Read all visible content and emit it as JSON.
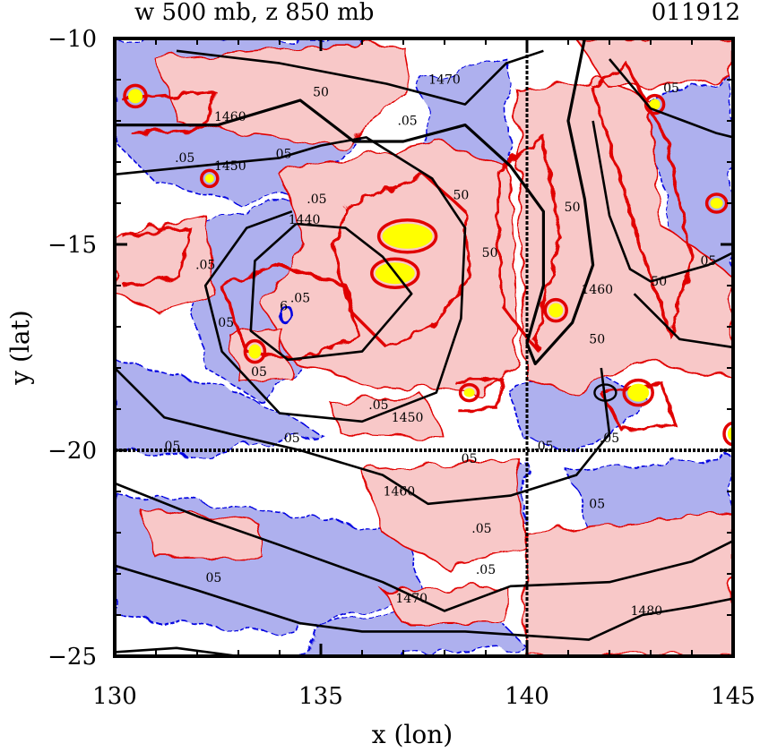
{
  "title_left": "w 500 mb, z 850 mb",
  "title_right": "011912",
  "colors": {
    "positive_fill": "#f8c8c8",
    "negative_fill": "#aeb0ee",
    "strong_updraft": "#ffff00",
    "positive_contour": "#e00000",
    "negative_contour": "#0000e0",
    "height_contour": "#000000"
  },
  "chart_data": {
    "type": "contour-map",
    "xlabel": "x (lon)",
    "ylabel": "y (lat)",
    "xlim": [
      130,
      145
    ],
    "ylim": [
      -25,
      -10
    ],
    "x_ticks": [
      130,
      135,
      140,
      145
    ],
    "x_tick_labels": [
      "130",
      "135",
      "140",
      "145"
    ],
    "y_ticks": [
      -25,
      -20,
      -15,
      -10
    ],
    "y_tick_labels": [
      "−25",
      "−20",
      "−15",
      "−10"
    ],
    "reference_lines": {
      "vertical_lon": 140,
      "horizontal_lat": -20
    },
    "height_contours": [
      {
        "level": "1440",
        "label_at": [
          134.6,
          -14.5
        ]
      },
      {
        "level": "1450",
        "label_at": [
          132.8,
          -13.2
        ]
      },
      {
        "level": "1450",
        "label_at": [
          137.1,
          -19.3
        ]
      },
      {
        "level": "1460",
        "label_at": [
          132.8,
          -12.0
        ]
      },
      {
        "level": "1460",
        "label_at": [
          136.9,
          -21.1
        ]
      },
      {
        "level": "1460",
        "label_at": [
          141.7,
          -16.2
        ]
      },
      {
        "level": "1470",
        "label_at": [
          138.0,
          -11.1
        ]
      },
      {
        "level": "1470",
        "label_at": [
          137.2,
          -23.7
        ]
      },
      {
        "level": "1480",
        "label_at": [
          142.9,
          -24.0
        ]
      }
    ],
    "w_contour_labels": [
      {
        "text": "50",
        "at": [
          135.0,
          -11.4
        ]
      },
      {
        "text": ".05",
        "at": [
          137.1,
          -12.1
        ]
      },
      {
        "text": "05",
        "at": [
          134.1,
          -12.9
        ]
      },
      {
        "text": ".05",
        "at": [
          131.7,
          -13.0
        ]
      },
      {
        "text": ".05",
        "at": [
          132.2,
          -15.6
        ]
      },
      {
        "text": ".05",
        "at": [
          134.5,
          -16.4
        ]
      },
      {
        "text": "05",
        "at": [
          132.7,
          -17.0
        ]
      },
      {
        "text": "05",
        "at": [
          133.5,
          -18.2
        ]
      },
      {
        "text": ".05",
        "at": [
          134.9,
          -14.0
        ]
      },
      {
        "text": "50",
        "at": [
          138.4,
          -13.9
        ]
      },
      {
        "text": "50",
        "at": [
          139.1,
          -15.3
        ]
      },
      {
        "text": "50",
        "at": [
          141.1,
          -14.2
        ]
      },
      {
        "text": "50",
        "at": [
          141.7,
          -17.4
        ]
      },
      {
        "text": "50",
        "at": [
          143.2,
          -16.0
        ]
      },
      {
        "text": ".05",
        "at": [
          136.4,
          -19.0
        ]
      },
      {
        "text": "05",
        "at": [
          134.3,
          -19.8
        ]
      },
      {
        "text": "05",
        "at": [
          131.4,
          -20.0
        ]
      },
      {
        "text": ".05",
        "at": [
          140.4,
          -20.0
        ]
      },
      {
        "text": "05",
        "at": [
          138.6,
          -20.3
        ]
      },
      {
        "text": ".05",
        "at": [
          142.0,
          -19.8
        ]
      },
      {
        "text": "05",
        "at": [
          141.7,
          -21.4
        ]
      },
      {
        "text": ".05",
        "at": [
          138.9,
          -22.0
        ]
      },
      {
        "text": "05",
        "at": [
          132.4,
          -23.2
        ]
      },
      {
        "text": ".05",
        "at": [
          139.0,
          -23.0
        ]
      },
      {
        "text": "05",
        "at": [
          144.4,
          -15.5
        ]
      },
      {
        "text": "05",
        "at": [
          143.5,
          -11.3
        ]
      },
      {
        "text": "6",
        "at": [
          134.1,
          -16.6
        ]
      }
    ]
  }
}
